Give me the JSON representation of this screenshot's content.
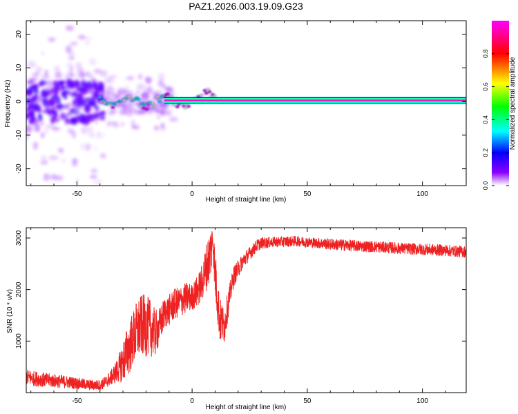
{
  "figure_title": "PAZ1.2026.003.19.09.G23",
  "chart_data": [
    {
      "type": "heatmap",
      "title": "PAZ1.2026.003.19.09.G23",
      "xlabel": "Height of straight line (km)",
      "ylabel": "Frequency (Hz)",
      "xlim": [
        -72,
        119
      ],
      "ylim": [
        -25,
        24
      ],
      "xticks": [
        -50,
        0,
        50,
        100
      ],
      "yticks": [
        -20,
        -10,
        0,
        10,
        20
      ],
      "colorbar": {
        "label": "Normalized spectral amplitude",
        "range": [
          0,
          1
        ],
        "ticks": [
          0.0,
          0.2,
          0.4,
          0.6,
          0.8
        ],
        "colormap": [
          "#ffffff",
          "#8b00ff",
          "#0000ff",
          "#00ffff",
          "#00ff00",
          "#ffff00",
          "#ff0000",
          "#ff00ff"
        ]
      },
      "features": [
        {
          "label": "strong line",
          "x_range": [
            -12,
            119
          ],
          "frequency_hz": 0.3,
          "amplitude": 1.0
        },
        {
          "label": "transition band",
          "x_range": [
            -40,
            -12
          ],
          "frequency_hz_range": [
            -4,
            3
          ],
          "amplitude": 0.45
        },
        {
          "label": "noisy scatter",
          "x_range": [
            -72,
            -38
          ],
          "frequency_hz_range": [
            -25,
            24
          ],
          "amplitude": 0.25
        }
      ]
    },
    {
      "type": "line",
      "xlabel": "Height of straight line (km)",
      "ylabel": "SNR (10 * v/v)",
      "xlim": [
        -72,
        119
      ],
      "ylim": [
        0,
        3200
      ],
      "xticks": [
        -50,
        0,
        50,
        100
      ],
      "yticks": [
        1000,
        2000,
        3000
      ],
      "series": [
        {
          "name": "SNR",
          "color": "#ee2222",
          "x": [
            -72,
            -65,
            -60,
            -55,
            -50,
            -45,
            -40,
            -37,
            -35,
            -32,
            -30,
            -28,
            -26,
            -24,
            -22,
            -20,
            -18,
            -16,
            -14,
            -12,
            -10,
            -8,
            -6,
            -4,
            -2,
            0,
            2,
            4,
            6,
            8,
            9,
            10,
            12,
            14,
            16,
            18,
            20,
            22,
            25,
            28,
            30,
            35,
            40,
            45,
            50,
            55,
            60,
            70,
            80,
            90,
            100,
            110,
            119
          ],
          "values": [
            300,
            250,
            230,
            210,
            180,
            150,
            140,
            220,
            300,
            450,
            600,
            800,
            1000,
            1200,
            1300,
            1300,
            1250,
            1150,
            1300,
            1550,
            1600,
            1700,
            1750,
            1800,
            1850,
            1850,
            1950,
            2100,
            2400,
            2700,
            3000,
            2300,
            1400,
            1300,
            1800,
            2250,
            2400,
            2550,
            2700,
            2850,
            2900,
            2920,
            2930,
            2940,
            2920,
            2900,
            2880,
            2850,
            2830,
            2800,
            2780,
            2760,
            2730
          ],
          "noise_amplitude": [
            150,
            140,
            130,
            120,
            110,
            100,
            100,
            120,
            150,
            250,
            400,
            500,
            550,
            600,
            600,
            600,
            550,
            450,
            350,
            300,
            300,
            300,
            300,
            300,
            300,
            250,
            300,
            350,
            450,
            550,
            300,
            500,
            450,
            350,
            250,
            200,
            170,
            150,
            130,
            120,
            110,
            100,
            100,
            100,
            100,
            100,
            110,
            110,
            110,
            110,
            110,
            110,
            110
          ]
        }
      ]
    }
  ]
}
